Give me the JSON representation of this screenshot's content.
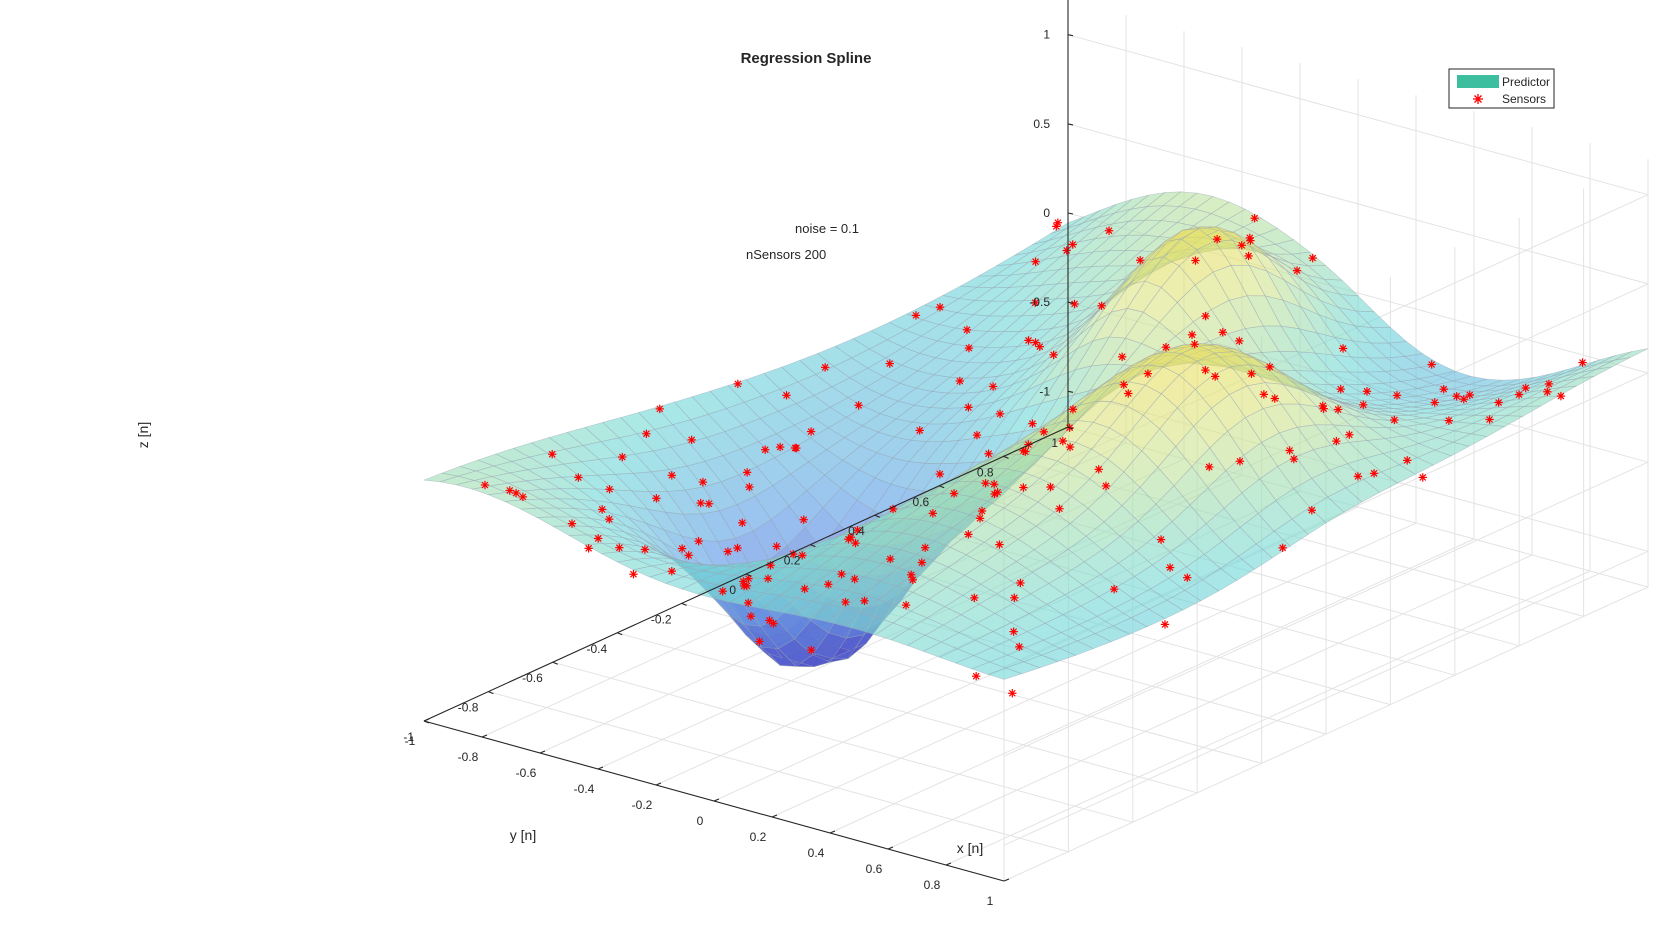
{
  "window": {
    "title": "Regression Spline"
  },
  "chart_data": {
    "type": "surface3d",
    "title": "Regression Spline",
    "xlabel": "x [n]",
    "ylabel": "y [n]",
    "zlabel": "z [n]",
    "xlim": [
      -1,
      1
    ],
    "ylim": [
      -1,
      1
    ],
    "zlim": [
      -1.2,
      1.2
    ],
    "x_ticks": [
      "-1",
      "-0.8",
      "-0.6",
      "-0.4",
      "-0.2",
      "0",
      "0.2",
      "0.4",
      "0.6",
      "0.8",
      "1"
    ],
    "y_ticks": [
      "-1",
      "-0.8",
      "-0.6",
      "-0.4",
      "-0.2",
      "0",
      "0.2",
      "0.4",
      "0.6",
      "0.8",
      "1"
    ],
    "z_ticks": [
      "-1",
      "-0.5",
      "0",
      "0.5",
      "1"
    ],
    "grid": true,
    "legend": {
      "position": "top-right",
      "entries": [
        {
          "name": "Predictor",
          "kind": "patch",
          "color": "#3dbf9f"
        },
        {
          "name": "Sensors",
          "kind": "marker",
          "marker": "*",
          "color": "#ff0000"
        }
      ]
    },
    "annotations": [
      "noise = 0.1",
      "nSensors 200"
    ],
    "series": [
      {
        "name": "Predictor",
        "kind": "surface",
        "colormap": "parula",
        "face_alpha": 0.55
      },
      {
        "name": "Sensors",
        "kind": "scatter3",
        "marker": "*",
        "color": "#ff0000",
        "count": 200
      }
    ]
  }
}
